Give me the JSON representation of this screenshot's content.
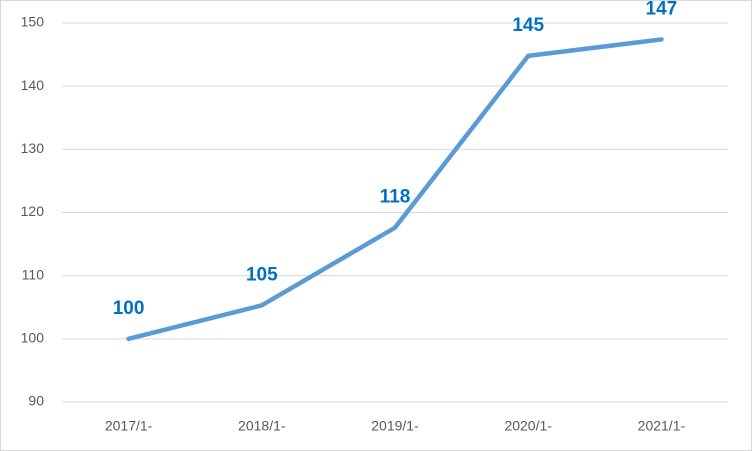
{
  "chart_data": {
    "type": "line",
    "categories": [
      "2017/1-",
      "2018/1-",
      "2019/1-",
      "2020/1-",
      "2021/1-"
    ],
    "values": [
      100,
      105.3,
      117.6,
      144.8,
      147.4
    ],
    "value_labels": [
      "100",
      "105",
      "118",
      "145",
      "147"
    ],
    "color": "#5b9bd5",
    "label_color": "#0070c0",
    "ylim": [
      90,
      150
    ],
    "yticks": [
      90,
      100,
      110,
      120,
      130,
      140,
      150
    ],
    "grid": true
  }
}
